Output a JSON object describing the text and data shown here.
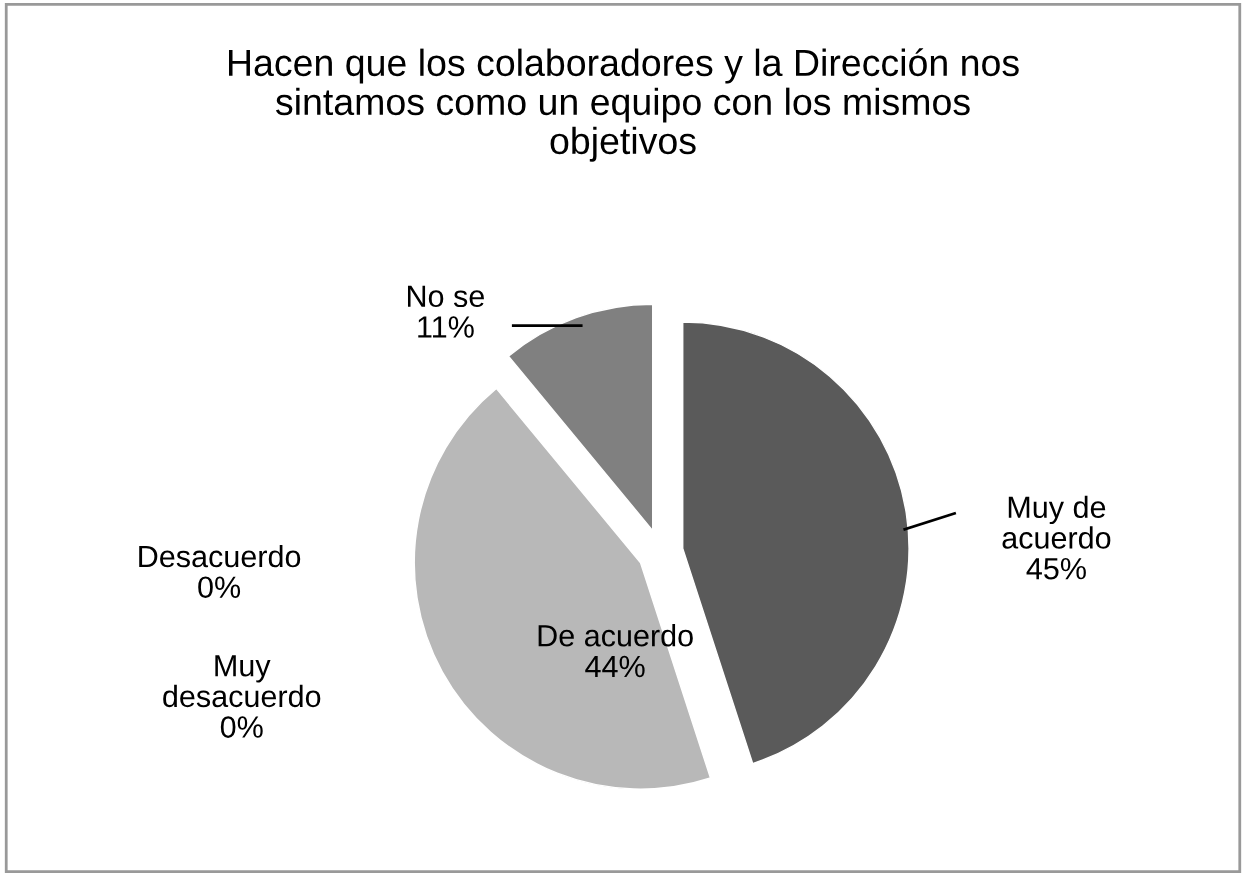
{
  "chart_data": {
    "type": "pie",
    "title": "Hacen que los colaboradores y la Dirección nos\nsintamos como un equipo con los mismos\nobjetivos",
    "categories": [
      "Muy de\nacuerdo",
      "De acuerdo",
      "Muy\ndesacuerdo",
      "Desacuerdo",
      "No se"
    ],
    "values": [
      45,
      44,
      0,
      0,
      11
    ],
    "value_labels": [
      "45%",
      "44%",
      "0%",
      "0%",
      "11%"
    ],
    "colors": [
      "#5a5a5a",
      "#b8b8b8",
      "#9a9a9a",
      "#8a8a8a",
      "#808080"
    ],
    "legend": false
  }
}
